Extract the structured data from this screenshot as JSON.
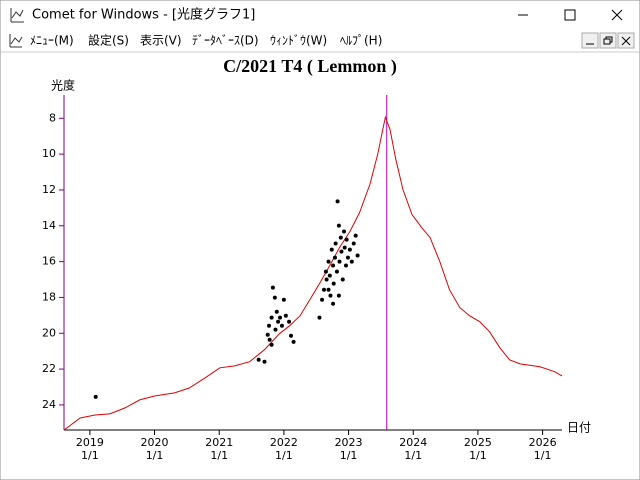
{
  "window": {
    "title": "Comet for Windows - [光度グラフ1]"
  },
  "menu": [
    "ﾒﾆｭｰ(M)",
    "設定(S)",
    "表示(V)",
    "ﾃﾞｰﾀﾍﾞｰｽ(D)",
    "ｳｨﾝﾄﾞｳ(W)",
    "ﾍﾙﾌﾟ(H)"
  ],
  "chart_data": {
    "type": "line",
    "title": "C/2021 T4 ( Lemmon )",
    "y_label": "光度",
    "x_label": "日付",
    "xlim": [
      2018.6,
      2026.3
    ],
    "xticks": [
      2019,
      2020,
      2021,
      2022,
      2023,
      2024,
      2025,
      2026
    ],
    "xtick_sublabels": [
      "1/1",
      "1/1",
      "1/1",
      "1/1",
      "1/1",
      "1/1",
      "1/1",
      "1/1"
    ],
    "ylim": [
      25.4,
      6.7
    ],
    "yticks": [
      8,
      10,
      12,
      14,
      16,
      18,
      20,
      22,
      24
    ],
    "marker_x": 2023.59,
    "marker_color": "#c000c0",
    "axis_color": "#800080",
    "line": {
      "color": "#e00000",
      "x": [
        2018.6,
        2018.85,
        2019.08,
        2019.31,
        2019.54,
        2019.77,
        2020.0,
        2020.31,
        2020.54,
        2020.78,
        2021.01,
        2021.24,
        2021.47,
        2021.7,
        2021.93,
        2022.09,
        2022.25,
        2022.4,
        2022.55,
        2022.71,
        2022.86,
        2023.02,
        2023.17,
        2023.33,
        2023.45,
        2023.53,
        2023.57,
        2023.64,
        2023.73,
        2023.84,
        2023.98,
        2024.13,
        2024.26,
        2024.41,
        2024.56,
        2024.72,
        2024.87,
        2025.03,
        2025.18,
        2025.34,
        2025.49,
        2025.65,
        2025.96,
        2026.19,
        2026.3
      ],
      "values": [
        25.4,
        24.73,
        24.56,
        24.5,
        24.17,
        23.72,
        23.5,
        23.33,
        23.05,
        22.49,
        21.93,
        21.82,
        21.59,
        20.92,
        20.03,
        19.58,
        19.02,
        18.13,
        17.23,
        16.22,
        15.22,
        14.32,
        13.26,
        11.69,
        10.01,
        8.62,
        7.94,
        8.62,
        10.29,
        11.97,
        13.37,
        14.1,
        14.66,
        16.0,
        17.57,
        18.57,
        19.02,
        19.36,
        19.92,
        20.81,
        21.48,
        21.71,
        21.87,
        22.15,
        22.38
      ]
    },
    "observations": {
      "color": "#000000",
      "x": [
        2019.09,
        2021.61,
        2021.7,
        2021.75,
        2021.78,
        2021.81,
        2021.83,
        2021.86,
        2021.87,
        2021.91,
        2021.94,
        2021.97,
        2022.0,
        2022.03,
        2022.08,
        2022.11,
        2022.15,
        2021.77,
        2021.81,
        2021.89,
        2022.55,
        2022.59,
        2022.62,
        2022.65,
        2022.66,
        2022.69,
        2022.71,
        2022.72,
        2022.74,
        2022.76,
        2022.77,
        2022.79,
        2022.8,
        2022.82,
        2022.83,
        2022.85,
        2022.86,
        2022.88,
        2022.89,
        2022.91,
        2022.93,
        2022.94,
        2022.96,
        2022.97,
        2022.99,
        2023.02,
        2023.05,
        2023.08,
        2023.11,
        2023.14,
        2022.85,
        2022.76,
        2022.69
      ],
      "values": [
        23.55,
        21.48,
        21.59,
        20.08,
        20.36,
        20.64,
        17.45,
        18.01,
        19.8,
        19.36,
        19.13,
        19.58,
        18.13,
        19.02,
        19.36,
        20.14,
        20.48,
        19.58,
        19.13,
        18.8,
        19.13,
        18.13,
        17.57,
        16.56,
        17.0,
        16.0,
        16.78,
        17.9,
        15.33,
        16.22,
        17.23,
        15.78,
        14.99,
        16.56,
        12.64,
        13.99,
        16.0,
        14.66,
        15.44,
        17.0,
        14.32,
        15.22,
        16.22,
        14.77,
        15.78,
        15.33,
        16.0,
        14.99,
        14.55,
        15.66,
        17.9,
        18.35,
        17.57
      ]
    }
  }
}
